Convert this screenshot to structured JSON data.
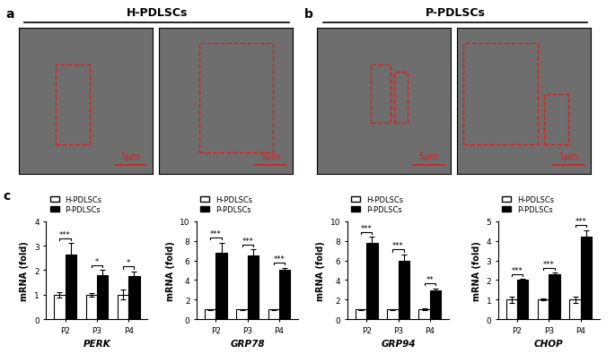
{
  "panels": {
    "a": {
      "label": "a",
      "title": "H-PDLSCs",
      "scale_bars": [
        "5μm",
        "5μm"
      ]
    },
    "b": {
      "label": "b",
      "title": "P-PDLSCs",
      "scale_bars": [
        "5μm",
        "1μm"
      ]
    },
    "c": {
      "label": "c"
    }
  },
  "chart_data": [
    {
      "type": "bar",
      "x_label": "PERK",
      "y_label": "mRNA (fold)",
      "categories": [
        "P2",
        "P3",
        "P4"
      ],
      "series": [
        {
          "name": "H-PDLSCs",
          "color": "#ffffff",
          "values": [
            1,
            1,
            1
          ],
          "errors": [
            0.1,
            0.08,
            0.2
          ]
        },
        {
          "name": "P-PDLSCs",
          "color": "#000000",
          "values": [
            2.65,
            1.8,
            1.75
          ],
          "errors": [
            0.45,
            0.2,
            0.2
          ]
        }
      ],
      "significance": [
        "***",
        "*",
        "*"
      ],
      "ylim": [
        0,
        4
      ],
      "yticks": [
        0,
        1,
        2,
        3,
        4
      ],
      "legend": "upper left"
    },
    {
      "type": "bar",
      "x_label": "GRP78",
      "y_label": "mRNA (fold)",
      "categories": [
        "P2",
        "P3",
        "P4"
      ],
      "series": [
        {
          "name": "H-PDLSCs",
          "color": "#ffffff",
          "values": [
            1,
            1,
            1
          ],
          "errors": [
            0.05,
            0.05,
            0.05
          ]
        },
        {
          "name": "P-PDLSCs",
          "color": "#000000",
          "values": [
            6.8,
            6.5,
            5.0
          ],
          "errors": [
            1.0,
            0.6,
            0.25
          ]
        }
      ],
      "significance": [
        "***",
        "***",
        "***"
      ],
      "ylim": [
        0,
        10
      ],
      "yticks": [
        0,
        2,
        4,
        6,
        8,
        10
      ],
      "legend": "upper left"
    },
    {
      "type": "bar",
      "x_label": "GRP94",
      "y_label": "mRNA (fold)",
      "categories": [
        "P2",
        "P3",
        "P4"
      ],
      "series": [
        {
          "name": "H-PDLSCs",
          "color": "#ffffff",
          "values": [
            1,
            1,
            1
          ],
          "errors": [
            0.05,
            0.05,
            0.1
          ]
        },
        {
          "name": "P-PDLSCs",
          "color": "#000000",
          "values": [
            7.8,
            6.0,
            2.9
          ],
          "errors": [
            0.6,
            0.6,
            0.25
          ]
        }
      ],
      "significance": [
        "***",
        "***",
        "**"
      ],
      "ylim": [
        0,
        10
      ],
      "yticks": [
        0,
        2,
        4,
        6,
        8,
        10
      ],
      "legend": "upper left"
    },
    {
      "type": "bar",
      "x_label": "CHOP",
      "y_label": "mRNA (fold)",
      "categories": [
        "P2",
        "P3",
        "P4"
      ],
      "series": [
        {
          "name": "H-PDLSCs",
          "color": "#ffffff",
          "values": [
            1,
            1,
            1
          ],
          "errors": [
            0.15,
            0.05,
            0.15
          ]
        },
        {
          "name": "P-PDLSCs",
          "color": "#000000",
          "values": [
            2.0,
            2.3,
            4.2
          ],
          "errors": [
            0.05,
            0.08,
            0.35
          ]
        }
      ],
      "significance": [
        "***",
        "***",
        "***"
      ],
      "ylim": [
        0,
        5
      ],
      "yticks": [
        0,
        1,
        2,
        3,
        4,
        5
      ],
      "legend": "upper left"
    }
  ]
}
